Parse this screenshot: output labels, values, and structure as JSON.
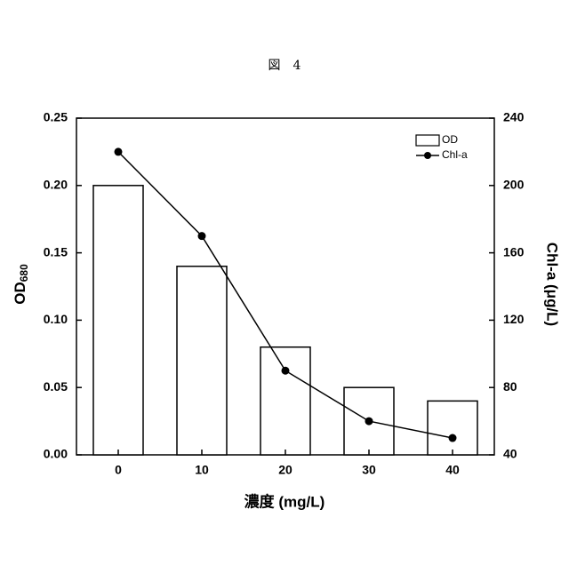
{
  "chart_data": {
    "type": "bar",
    "title": "図　4",
    "categories": [
      "0",
      "10",
      "20",
      "30",
      "40"
    ],
    "series": [
      {
        "name": "OD",
        "type": "bar",
        "color": "#ffffff",
        "values": [
          0.2,
          0.14,
          0.08,
          0.05,
          0.04
        ]
      },
      {
        "name": "Chl-a",
        "type": "line",
        "axis": "y2",
        "color": "#000000",
        "values": [
          220,
          170,
          90,
          60,
          50
        ]
      }
    ],
    "ylabel": "OD",
    "ylabel_subscript": "680",
    "y2label": "Chl-a (μg/L)",
    "xlabel": "濃度 (mg/L)",
    "ylim": [
      0,
      0.25
    ],
    "yticks": [
      {
        "value": 0,
        "label": "0.00"
      },
      0.05,
      {
        "value": 0.1,
        "label": "0.10"
      },
      0.15,
      {
        "value": 0.2,
        "label": "0.20"
      },
      0.25
    ],
    "y2lim": [
      40,
      240
    ],
    "y2ticks": [
      40,
      80,
      120,
      160,
      200,
      240
    ],
    "legend": "top-right"
  }
}
